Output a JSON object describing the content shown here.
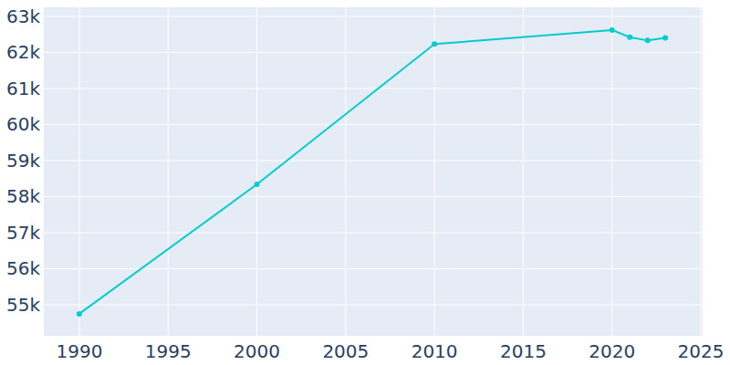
{
  "chart_data": {
    "type": "line",
    "x": [
      1990,
      2000,
      2010,
      2020,
      2021,
      2022,
      2023
    ],
    "values": [
      54750,
      58340,
      62230,
      62620,
      62420,
      62330,
      62400
    ],
    "color": "#00cccc",
    "marker": "circle",
    "xlim": [
      1988,
      2025.1
    ],
    "xticks": [
      1990,
      1995,
      2000,
      2005,
      2010,
      2015,
      2020,
      2025
    ],
    "ylim": [
      54140,
      63250
    ],
    "yticks": [
      {
        "value": 55000,
        "label": "55k"
      },
      {
        "value": 56000,
        "label": "56k"
      },
      {
        "value": 57000,
        "label": "57k"
      },
      {
        "value": 58000,
        "label": "58k"
      },
      {
        "value": 59000,
        "label": "59k"
      },
      {
        "value": 60000,
        "label": "60k"
      },
      {
        "value": 61000,
        "label": "61k"
      },
      {
        "value": 62000,
        "label": "62k"
      },
      {
        "value": 63000,
        "label": "63k"
      }
    ],
    "grid": true
  }
}
